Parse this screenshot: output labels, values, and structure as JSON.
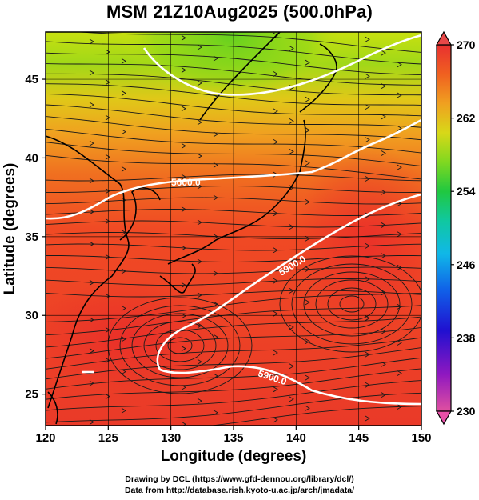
{
  "title": "MSM 21Z10Aug2025 (500.0hPa)",
  "axes": {
    "xlabel": "Longitude (degrees)",
    "ylabel": "Latitude  (degrees)",
    "xticks": [
      "120",
      "125",
      "130",
      "135",
      "140",
      "145",
      "150"
    ],
    "yticks": [
      "25",
      "30",
      "35",
      "40",
      "45"
    ],
    "xlim": [
      120,
      150
    ],
    "ylim": [
      23,
      48
    ]
  },
  "colorbar": {
    "range": [
      230,
      270
    ],
    "ticks": [
      "270",
      "262",
      "254",
      "246",
      "238",
      "230"
    ],
    "colors": [
      "#e8508a",
      "#b01ea8",
      "#3010c8",
      "#1050e0",
      "#10a8e8",
      "#10c8a8",
      "#20c850",
      "#70d820",
      "#c8e010",
      "#f0c020",
      "#f08020",
      "#f04820",
      "#e82c2c"
    ]
  },
  "contours": {
    "labels": [
      "5600.0",
      "5900.0",
      "5900.0"
    ],
    "line_color": "#ffffff"
  },
  "credits": {
    "line1": "Drawing by DCL (https://www.gfd-dennou.org/library/dcl/)",
    "line2": "Data from http://database.rish.kyoto-u.ac.jp/arch/jmadata/"
  }
}
